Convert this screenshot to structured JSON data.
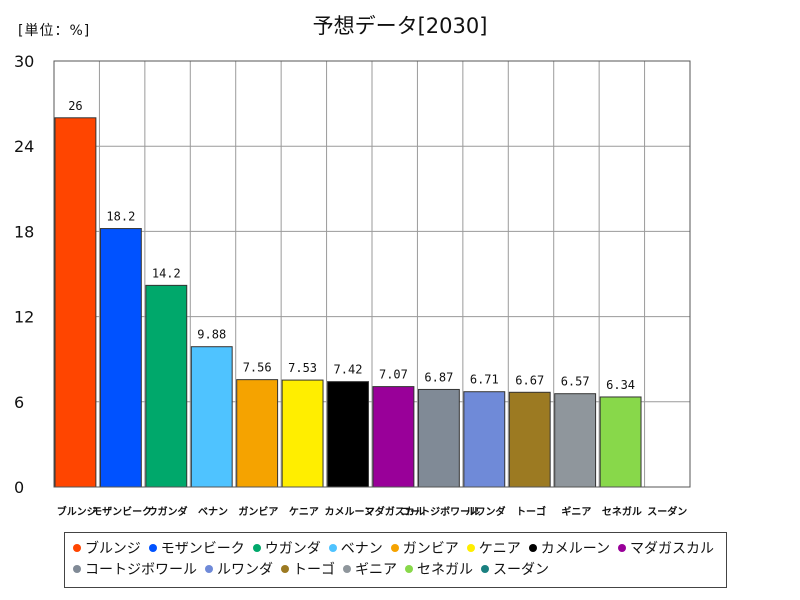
{
  "chart_data": {
    "type": "bar",
    "title": "予想データ[2030]",
    "unit_label": "[単位：%]",
    "xlabel": "",
    "ylabel": "",
    "ylim": [
      0,
      30
    ],
    "yticks": [
      "0",
      "6",
      "12",
      "18",
      "24",
      "30"
    ],
    "grid": true,
    "legend_position": "bottom",
    "categories": [
      "ブルンジ",
      "モザンビーク",
      "ウガンダ",
      "ベナン",
      "ガンビア",
      "ケニア",
      "カメルーン",
      "マダガスカル",
      "コートジボワール",
      "ルワンダ",
      "トーゴ",
      "ギニア",
      "セネガル",
      "スーダン"
    ],
    "values": [
      26,
      18.2,
      14.2,
      9.88,
      7.56,
      7.53,
      7.42,
      7.07,
      6.87,
      6.71,
      6.67,
      6.57,
      6.34,
      null
    ],
    "value_labels": [
      "26",
      "18.2",
      "14.2",
      "9.88",
      "7.56",
      "7.53",
      "7.42",
      "7.07",
      "6.87",
      "6.71",
      "6.67",
      "6.57",
      "6.34",
      ""
    ],
    "colors": [
      "#ff4500",
      "#0052ff",
      "#00a86b",
      "#4fc3ff",
      "#f5a300",
      "#ffee00",
      "#000000",
      "#990099",
      "#808a96",
      "#6f8ad8",
      "#9c7a22",
      "#8f969c",
      "#88d84a",
      "#1a8080"
    ]
  }
}
